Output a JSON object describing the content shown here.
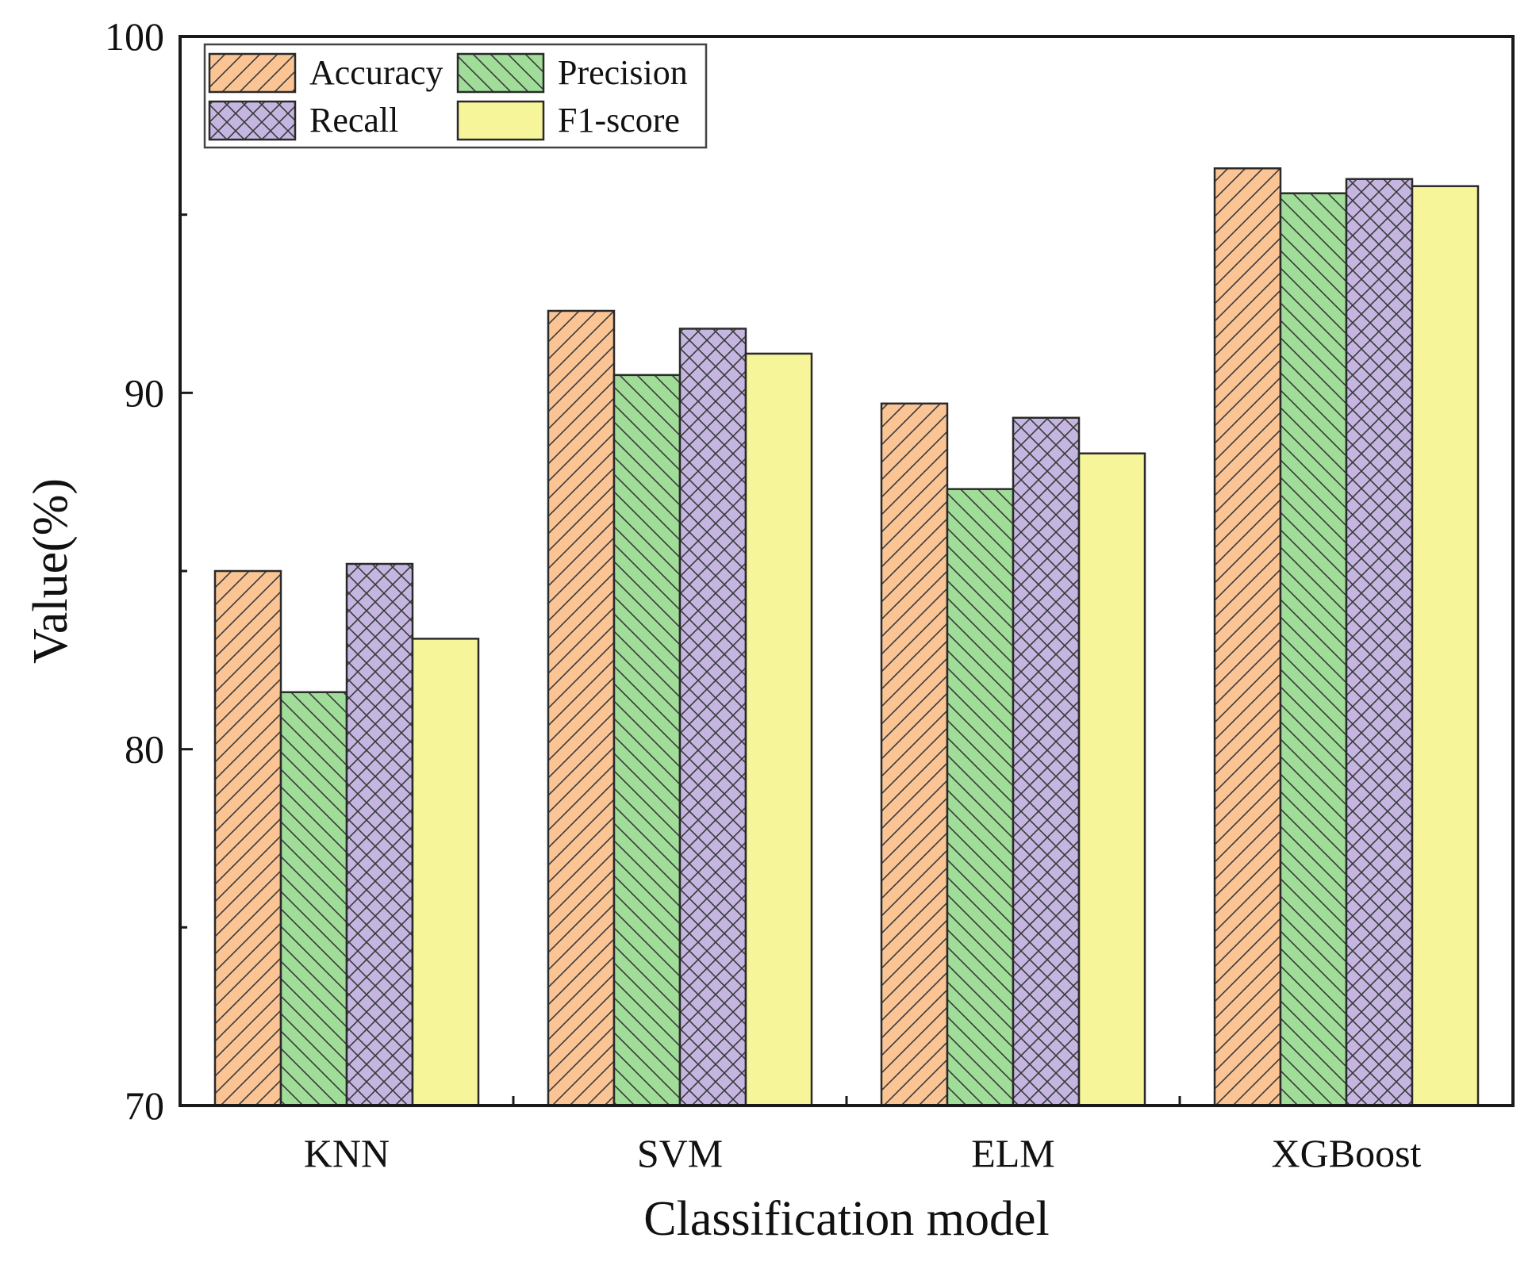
{
  "chart_data": {
    "type": "bar",
    "title": "",
    "xlabel": "Classification model",
    "ylabel": "Value(%)",
    "ylim": [
      70,
      100
    ],
    "yticks": [
      "70",
      "80",
      "90",
      "100"
    ],
    "categories": [
      "KNN",
      "SVM",
      "ELM",
      "XGBoost"
    ],
    "legend_position": "top-left",
    "series": [
      {
        "name": "Accuracy",
        "values": [
          85.0,
          92.3,
          89.7,
          96.3
        ],
        "color": "#fbc495",
        "pattern": "hatch-forward"
      },
      {
        "name": "Precision",
        "values": [
          81.6,
          90.5,
          87.3,
          95.6
        ],
        "color": "#9fdd98",
        "pattern": "hatch-backward"
      },
      {
        "name": "Recall",
        "values": [
          85.2,
          91.8,
          89.3,
          96.0
        ],
        "color": "#c4b6e0",
        "pattern": "crosshatch"
      },
      {
        "name": "F1-score",
        "values": [
          83.1,
          91.1,
          88.3,
          95.8
        ],
        "color": "#f6f59a",
        "pattern": "none"
      }
    ]
  }
}
